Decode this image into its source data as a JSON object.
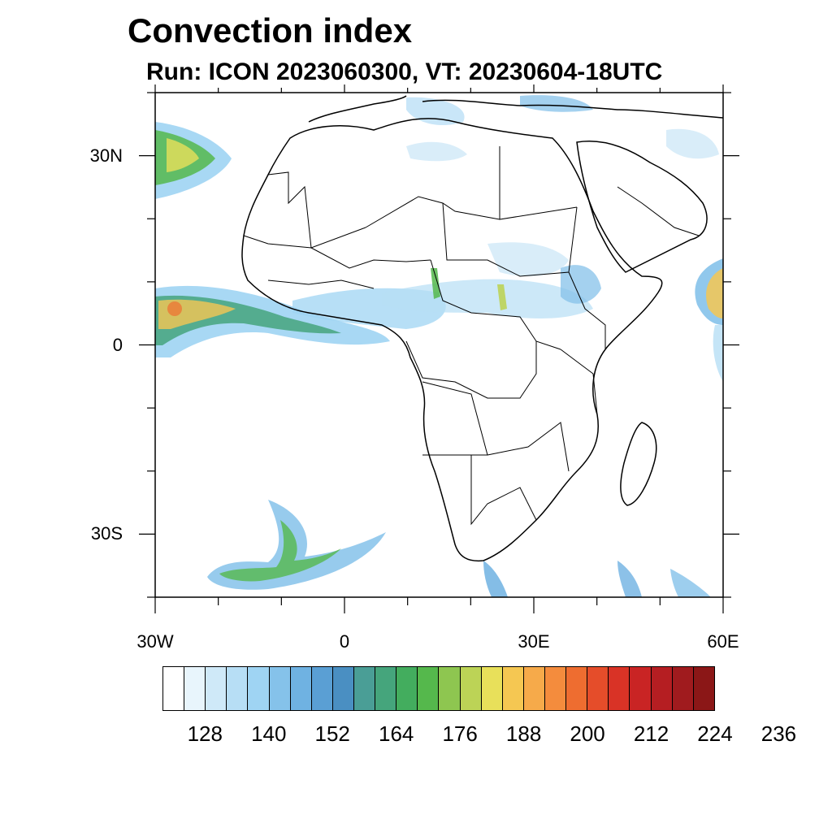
{
  "title": "Convection index",
  "subtitle": "Run: ICON 2023060300,  VT: 20230604-18UTC",
  "map": {
    "lon_range": [
      -30,
      60
    ],
    "lat_range": [
      -40,
      40
    ],
    "y_ticks": [
      {
        "lat": 30,
        "label": "30N"
      },
      {
        "lat": 0,
        "label": "0"
      },
      {
        "lat": -30,
        "label": "30S"
      }
    ],
    "x_ticks": [
      {
        "lon": -30,
        "label": "30W"
      },
      {
        "lon": 0,
        "label": "0"
      },
      {
        "lon": 30,
        "label": "30E"
      },
      {
        "lon": 60,
        "label": "60E"
      }
    ]
  },
  "colorbar": {
    "colors": [
      "#ffffff",
      "#e8f5fc",
      "#cfe9f8",
      "#b7def5",
      "#9fd4f3",
      "#85c2ea",
      "#6fb2e2",
      "#5a9fd4",
      "#4a8fc2",
      "#4a9e96",
      "#45a57c",
      "#43ad5e",
      "#55b84c",
      "#8ec650",
      "#bcd356",
      "#e8e05a",
      "#f5c752",
      "#f6aa4a",
      "#f48c3d",
      "#ee6d30",
      "#e54d2a",
      "#d93326",
      "#c92424",
      "#b51e22",
      "#a01b1e",
      "#8b1717"
    ],
    "labels": [
      "128",
      "140",
      "152",
      "164",
      "176",
      "188",
      "200",
      "212",
      "224",
      "236"
    ]
  }
}
